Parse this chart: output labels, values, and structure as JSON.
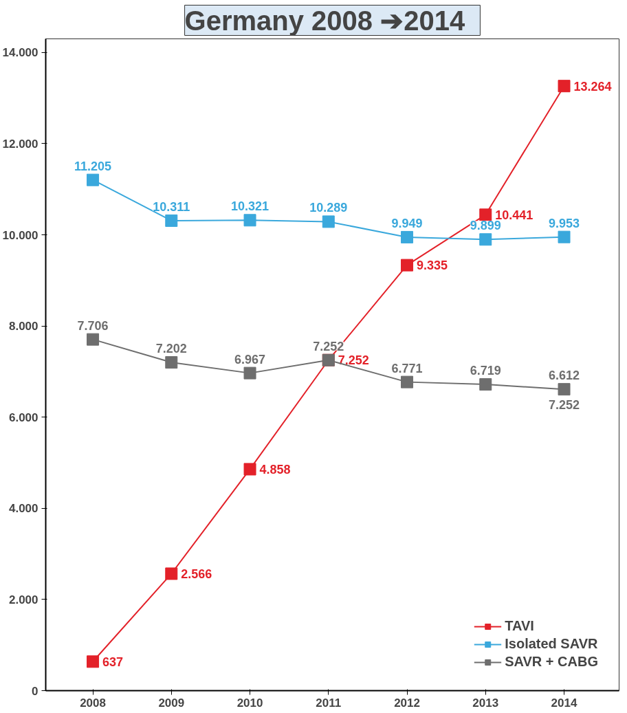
{
  "chart_data": {
    "type": "line",
    "title": "Germany   2008 ➔2014",
    "categories": [
      "2008",
      "2009",
      "2010",
      "2011",
      "2012",
      "2013",
      "2014"
    ],
    "series": [
      {
        "name": "TAVI",
        "color": "#e32129",
        "values": [
          637,
          2566,
          4858,
          7252,
          9335,
          10441,
          13264
        ],
        "value_labels": [
          "637",
          "2.566",
          "4.858",
          "7.252",
          "9.335",
          "10.441",
          "13.264"
        ]
      },
      {
        "name": "Isolated SAVR",
        "color": "#3aa8dc",
        "values": [
          11205,
          10311,
          10321,
          10289,
          9949,
          9899,
          9953
        ],
        "value_labels": [
          "11.205",
          "10.311",
          "10.321",
          "10.289",
          "9.949",
          "9.899",
          "9.953"
        ]
      },
      {
        "name": "SAVR + CABG",
        "color": "#6e6e6e",
        "values": [
          7706,
          7202,
          6967,
          7252,
          6771,
          6719,
          6612
        ],
        "value_labels": [
          "7.706",
          "7.202",
          "6.967",
          "7.252",
          "6.771",
          "6.719",
          "6.612"
        ]
      }
    ],
    "annotations": [
      "7.252"
    ],
    "ylim": [
      0,
      14300
    ],
    "yticks": [
      {
        "value": 0,
        "label": "0"
      },
      {
        "value": 2000,
        "label": "2.000"
      },
      {
        "value": 4000,
        "label": "4.000"
      },
      {
        "value": 6000,
        "label": "6.000"
      },
      {
        "value": 8000,
        "label": "8.000"
      },
      {
        "value": 10000,
        "label": "10.000"
      },
      {
        "value": 12000,
        "label": "12.000"
      },
      {
        "value": 14000,
        "label": "14.000"
      }
    ],
    "marker": "square",
    "legend": "bottom right",
    "grid": false
  }
}
